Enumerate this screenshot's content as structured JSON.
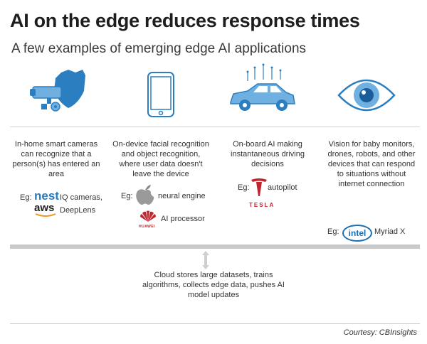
{
  "title": "AI on the edge reduces response times",
  "subtitle": "A few examples of emerging edge AI applications",
  "columns": [
    {
      "icon": "security-camera-badge-icon",
      "text": "In-home smart cameras can recognize that a person(s) has entered an area",
      "eg_label": "Eg:",
      "brands": [
        {
          "logo": "nest",
          "label": "IQ cameras,"
        },
        {
          "logo": "aws",
          "label": "DeepLens"
        }
      ]
    },
    {
      "icon": "smartphone-icon",
      "text": "On-device facial recognition and object recognition, where user data doesn't leave the device",
      "eg_label": "Eg:",
      "brands": [
        {
          "logo": "apple-icon",
          "label": "neural engine"
        },
        {
          "logo": "huawei-icon",
          "label": "AI processor",
          "wordmark": "HUAWEI"
        }
      ]
    },
    {
      "icon": "connected-car-icon",
      "text": "On-board AI making instantaneous driving decisions",
      "eg_label": "Eg:",
      "brands": [
        {
          "logo": "tesla-icon",
          "label": "autopilot",
          "wordmark": "TESLA"
        }
      ]
    },
    {
      "icon": "eye-icon",
      "text": "Vision for baby monitors, drones, robots, and other devices that can respond to situations without internet connection",
      "eg_label": "Eg:",
      "brands": [
        {
          "logo": "intel",
          "label": "Myriad X"
        }
      ]
    }
  ],
  "cloud_text": "Cloud stores large datasets, trains algorithms, collects edge data, pushes AI model updates",
  "courtesy": "Courtesy: CBInsights",
  "colors": {
    "accent_blue": "#2b7fc1",
    "light_blue": "#6fb0e0",
    "tesla_red": "#c0262d",
    "gray": "#c9c9c9"
  }
}
